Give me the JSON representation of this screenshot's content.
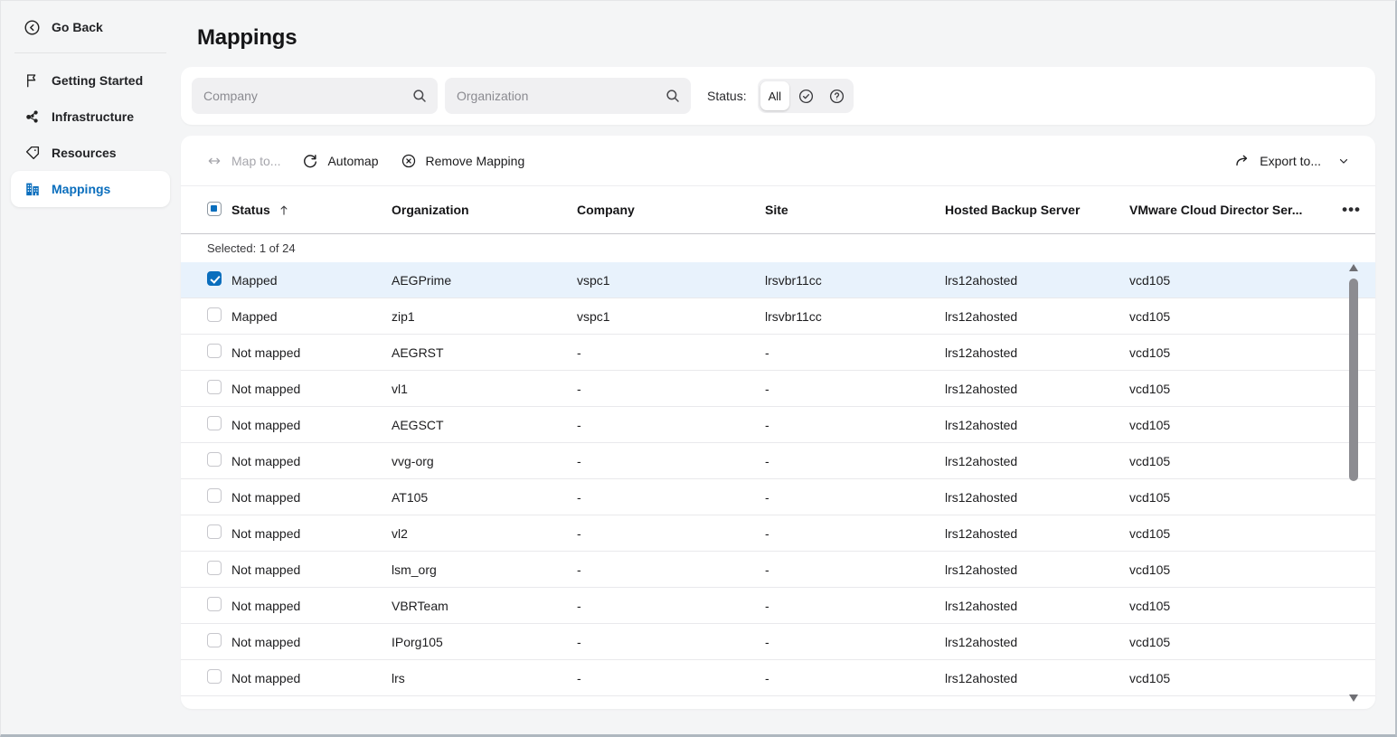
{
  "colors": {
    "accent": "#0a6ebd",
    "selected_row_bg": "#e8f2fc"
  },
  "sidebar": {
    "back": {
      "label": "Go Back",
      "icon": "chevron-left-circle-icon"
    },
    "items": [
      {
        "label": "Getting Started",
        "icon": "flag-icon",
        "active": false
      },
      {
        "label": "Infrastructure",
        "icon": "network-nodes-icon",
        "active": false
      },
      {
        "label": "Resources",
        "icon": "tag-icon",
        "active": false
      },
      {
        "label": "Mappings",
        "icon": "buildings-icon",
        "active": true
      }
    ]
  },
  "header": {
    "title": "Mappings"
  },
  "filters": {
    "company": {
      "placeholder": "Company",
      "value": "",
      "icon": "search-icon"
    },
    "organization": {
      "placeholder": "Organization",
      "value": "",
      "icon": "search-icon"
    },
    "status": {
      "label": "Status:",
      "selected": "All",
      "options": [
        {
          "label": "All",
          "icon": null,
          "selected": true
        },
        {
          "label": "",
          "icon": "check-circle-icon",
          "selected": false
        },
        {
          "label": "",
          "icon": "question-circle-icon",
          "selected": false
        }
      ]
    }
  },
  "toolbar": {
    "map_to": {
      "label": "Map to...",
      "icon": "map-arrows-icon",
      "disabled": true
    },
    "automap": {
      "label": "Automap",
      "icon": "refresh-icon",
      "disabled": false
    },
    "remove_mapping": {
      "label": "Remove Mapping",
      "icon": "remove-circle-icon",
      "disabled": false
    },
    "export_to": {
      "label": "Export to...",
      "icon": "export-arrow-icon",
      "chevron": "chevron-down-icon"
    }
  },
  "table": {
    "columns": {
      "status": "Status",
      "organization": "Organization",
      "company": "Company",
      "site": "Site",
      "hosted_backup_server": "Hosted Backup Server",
      "vcd_server": "VMware Cloud Director Ser..."
    },
    "sort": {
      "column": "Status",
      "direction": "asc",
      "icon": "sort-ascending-icon"
    },
    "more_icon": "ellipsis-icon",
    "selected_summary": "Selected: 1 of 24",
    "rows": [
      {
        "checked": true,
        "selected": true,
        "status": "Mapped",
        "organization": "AEGPrime",
        "company": "vspc1",
        "site": "lrsvbr11cc",
        "hosted_backup_server": "lrs12ahosted",
        "vcd_server": "vcd105"
      },
      {
        "checked": false,
        "selected": false,
        "status": "Mapped",
        "organization": "zip1",
        "company": "vspc1",
        "site": "lrsvbr11cc",
        "hosted_backup_server": "lrs12ahosted",
        "vcd_server": "vcd105"
      },
      {
        "checked": false,
        "selected": false,
        "status": "Not mapped",
        "organization": "AEGRST",
        "company": "-",
        "site": "-",
        "hosted_backup_server": "lrs12ahosted",
        "vcd_server": "vcd105"
      },
      {
        "checked": false,
        "selected": false,
        "status": "Not mapped",
        "organization": "vl1",
        "company": "-",
        "site": "-",
        "hosted_backup_server": "lrs12ahosted",
        "vcd_server": "vcd105"
      },
      {
        "checked": false,
        "selected": false,
        "status": "Not mapped",
        "organization": "AEGSCT",
        "company": "-",
        "site": "-",
        "hosted_backup_server": "lrs12ahosted",
        "vcd_server": "vcd105"
      },
      {
        "checked": false,
        "selected": false,
        "status": "Not mapped",
        "organization": "vvg-org",
        "company": "-",
        "site": "-",
        "hosted_backup_server": "lrs12ahosted",
        "vcd_server": "vcd105"
      },
      {
        "checked": false,
        "selected": false,
        "status": "Not mapped",
        "organization": "AT105",
        "company": "-",
        "site": "-",
        "hosted_backup_server": "lrs12ahosted",
        "vcd_server": "vcd105"
      },
      {
        "checked": false,
        "selected": false,
        "status": "Not mapped",
        "organization": "vl2",
        "company": "-",
        "site": "-",
        "hosted_backup_server": "lrs12ahosted",
        "vcd_server": "vcd105"
      },
      {
        "checked": false,
        "selected": false,
        "status": "Not mapped",
        "organization": "lsm_org",
        "company": "-",
        "site": "-",
        "hosted_backup_server": "lrs12ahosted",
        "vcd_server": "vcd105"
      },
      {
        "checked": false,
        "selected": false,
        "status": "Not mapped",
        "organization": "VBRTeam",
        "company": "-",
        "site": "-",
        "hosted_backup_server": "lrs12ahosted",
        "vcd_server": "vcd105"
      },
      {
        "checked": false,
        "selected": false,
        "status": "Not mapped",
        "organization": "IPorg105",
        "company": "-",
        "site": "-",
        "hosted_backup_server": "lrs12ahosted",
        "vcd_server": "vcd105"
      },
      {
        "checked": false,
        "selected": false,
        "status": "Not mapped",
        "organization": "lrs",
        "company": "-",
        "site": "-",
        "hosted_backup_server": "lrs12ahosted",
        "vcd_server": "vcd105"
      }
    ]
  }
}
